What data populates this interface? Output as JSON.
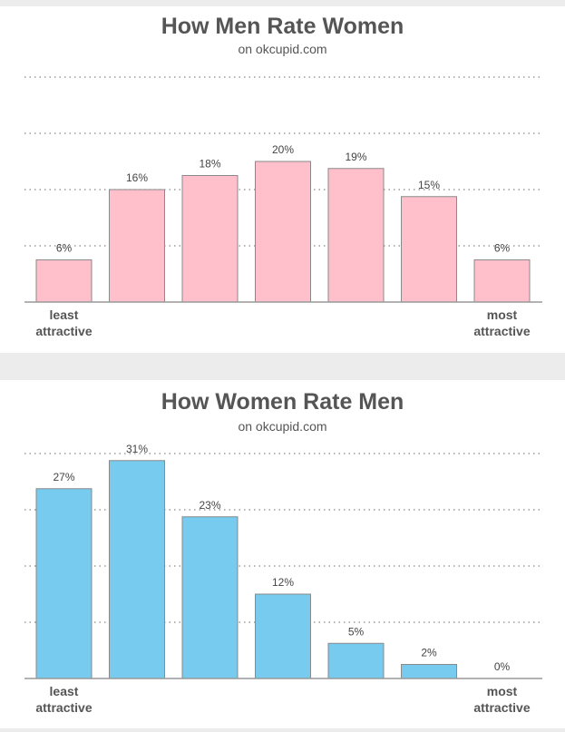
{
  "chart_data": [
    {
      "type": "bar",
      "title": "How Men Rate Women",
      "subtitle": "on okcupid.com",
      "categories": [
        "1",
        "2",
        "3",
        "4",
        "5",
        "6",
        "7"
      ],
      "values": [
        6,
        16,
        18,
        20,
        19,
        15,
        6
      ],
      "value_labels": [
        "6%",
        "16%",
        "18%",
        "20%",
        "19%",
        "15%",
        "6%"
      ],
      "x_end_labels": {
        "left": [
          "least",
          "attractive"
        ],
        "right": [
          "most",
          "attractive"
        ]
      },
      "ylim": [
        0,
        32
      ],
      "grid": true,
      "bar_color": "#ffc0cb"
    },
    {
      "type": "bar",
      "title": "How Women Rate Men",
      "subtitle": "on okcupid.com",
      "categories": [
        "1",
        "2",
        "3",
        "4",
        "5",
        "6",
        "7"
      ],
      "values": [
        27,
        31,
        23,
        12,
        5,
        2,
        0
      ],
      "value_labels": [
        "27%",
        "31%",
        "23%",
        "12%",
        "5%",
        "2%",
        "0%"
      ],
      "x_end_labels": {
        "left": [
          "least",
          "attractive"
        ],
        "right": [
          "most",
          "attractive"
        ]
      },
      "ylim": [
        0,
        32
      ],
      "grid": true,
      "bar_color": "#76cbef"
    }
  ]
}
